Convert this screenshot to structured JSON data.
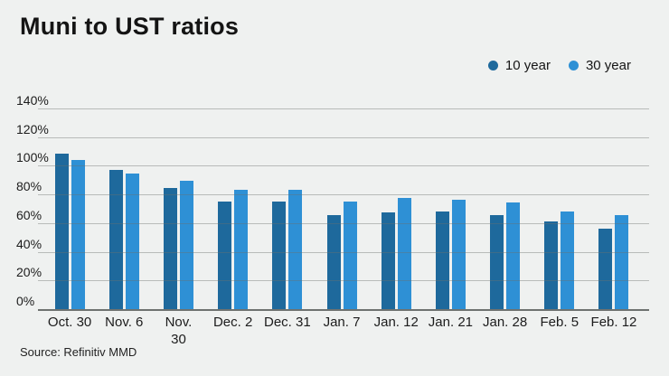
{
  "header": {
    "title": "Muni to UST ratios"
  },
  "legend": {
    "items": [
      {
        "label": "10 year",
        "color": "#1e699c"
      },
      {
        "label": "30 year",
        "color": "#2e90d5"
      }
    ]
  },
  "chart_data": {
    "type": "bar",
    "title": "Muni to UST ratios",
    "categories": [
      "Oct. 30",
      "Nov. 6",
      "Nov. 30",
      "Dec. 2",
      "Dec. 31",
      "Jan. 7",
      "Jan. 12",
      "Jan. 21",
      "Jan. 28",
      "Feb. 5",
      "Feb. 12"
    ],
    "categories_display": [
      "Oct. 30",
      "Nov. 6",
      "Nov.\n30",
      "Dec. 2",
      "Dec. 31",
      "Jan. 7",
      "Jan. 12",
      "Jan. 21",
      "Jan. 28",
      "Feb. 5",
      "Feb. 12"
    ],
    "series": [
      {
        "name": "10 year",
        "color": "#1e699c",
        "values": [
          109,
          98,
          85,
          76,
          76,
          66,
          68,
          69,
          66,
          62,
          57
        ]
      },
      {
        "name": "30 year",
        "color": "#2e90d5",
        "values": [
          105,
          95,
          90,
          84,
          84,
          76,
          78,
          77,
          75,
          69,
          66
        ]
      }
    ],
    "xlabel": "",
    "ylabel": "",
    "ylim": [
      0,
      140
    ],
    "ytick_step": 20,
    "ytick_labels": [
      "0%",
      "20%",
      "40%",
      "60%",
      "80%",
      "100%",
      "120%",
      "140%"
    ],
    "grid": true,
    "legend_position": "top-right",
    "unit": "%"
  },
  "footer": {
    "source": "Source: Refinitiv MMD"
  },
  "colors": {
    "background": "#eff1f0",
    "gridline": "#a9aeab",
    "axis_line": "#6e7270",
    "text": "#161616"
  }
}
